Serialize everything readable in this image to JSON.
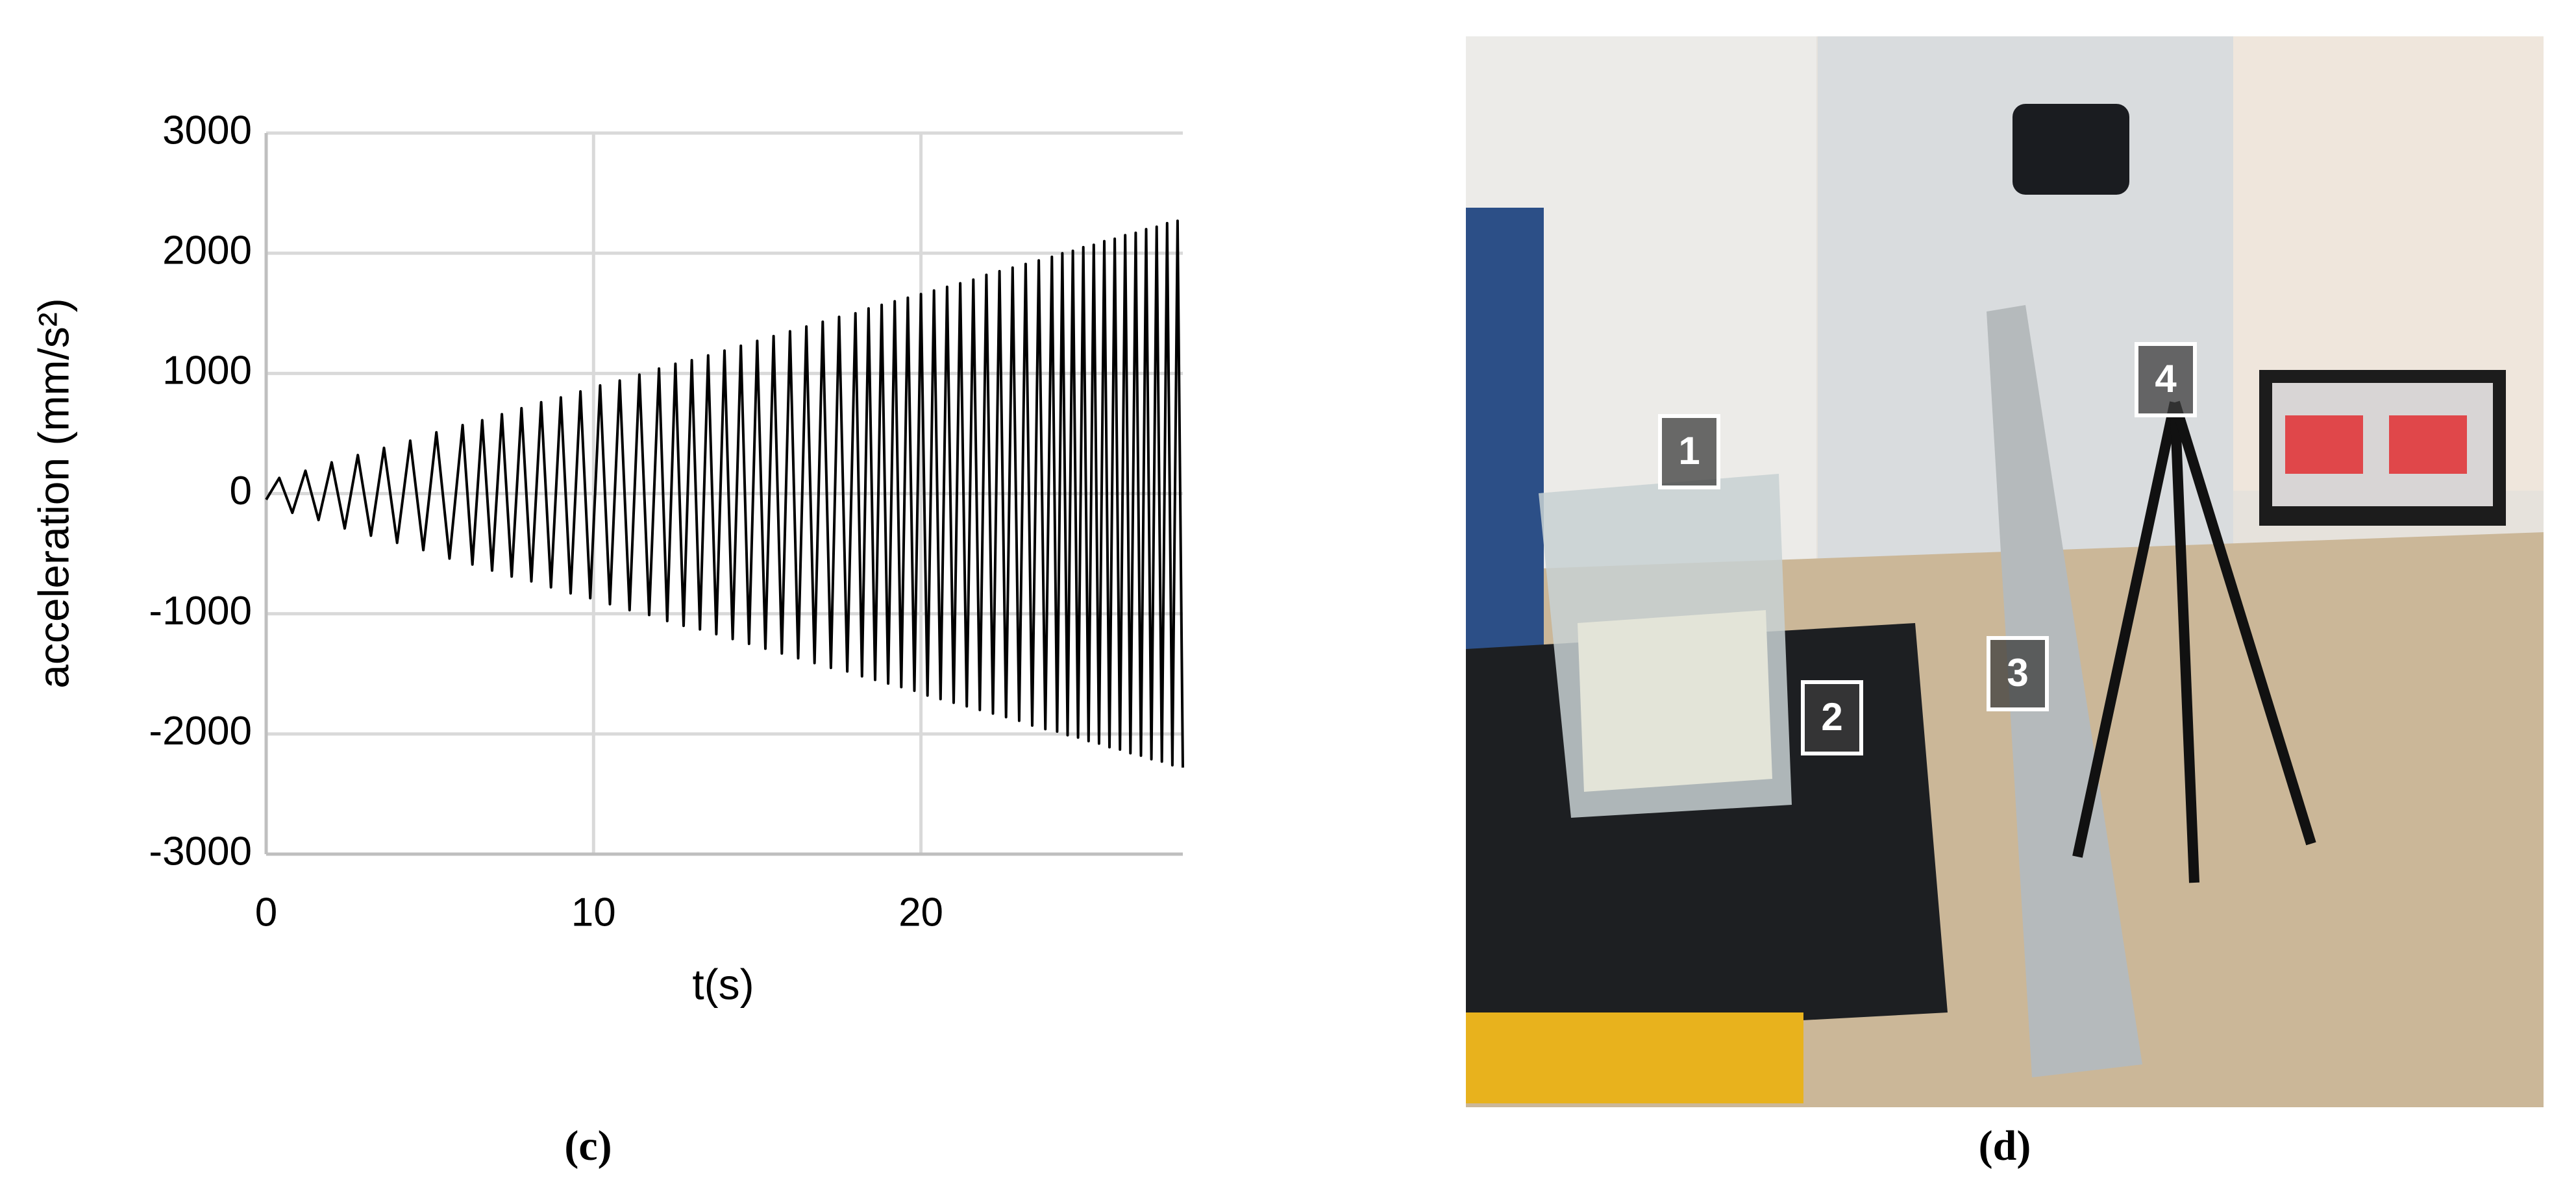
{
  "chart_data": {
    "type": "line",
    "xlabel": "t(s)",
    "ylabel": "acceleration (mm/s²)",
    "caption": "(c)",
    "xlim": [
      0,
      28
    ],
    "xticks": [
      0,
      10,
      20
    ],
    "ylim": [
      -3000,
      3000
    ],
    "yticks": [
      -3000,
      -2000,
      -1000,
      0,
      1000,
      2000,
      3000
    ],
    "grid": true,
    "series": [
      {
        "color": "#000000",
        "x": [
          0,
          0.4,
          0.8,
          1.2,
          1.6,
          2.0,
          2.4,
          2.8,
          3.2,
          3.6,
          4.0,
          4.4,
          4.8,
          5.2,
          5.6,
          6.0,
          6.3,
          6.6,
          6.9,
          7.2,
          7.5,
          7.8,
          8.1,
          8.4,
          8.7,
          9.0,
          9.3,
          9.6,
          9.9,
          10.2,
          10.5,
          10.8,
          11.1,
          11.4,
          11.7,
          12.0,
          12.25,
          12.5,
          12.75,
          13.0,
          13.25,
          13.5,
          13.75,
          14.0,
          14.25,
          14.5,
          14.75,
          15.0,
          15.25,
          15.5,
          15.75,
          16.0,
          16.25,
          16.5,
          16.75,
          17.0,
          17.25,
          17.5,
          17.75,
          18.0,
          18.2,
          18.4,
          18.6,
          18.8,
          19.0,
          19.2,
          19.4,
          19.6,
          19.8,
          20.0,
          20.2,
          20.4,
          20.6,
          20.8,
          21.0,
          21.2,
          21.4,
          21.6,
          21.8,
          22.0,
          22.2,
          22.4,
          22.6,
          22.8,
          23.0,
          23.2,
          23.4,
          23.6,
          23.8,
          24.0,
          24.16,
          24.32,
          24.48,
          24.64,
          24.8,
          24.96,
          25.12,
          25.28,
          25.44,
          25.6,
          25.76,
          25.92,
          26.08,
          26.24,
          26.4,
          26.56,
          26.72,
          26.88,
          27.04,
          27.2,
          27.36,
          27.52,
          27.68,
          27.84,
          28.0
        ],
        "values": [
          -50,
          130,
          -160,
          190,
          -220,
          260,
          -290,
          320,
          -350,
          380,
          -410,
          440,
          -470,
          510,
          -540,
          570,
          -590,
          610,
          -640,
          660,
          -690,
          710,
          -730,
          760,
          -780,
          800,
          -830,
          850,
          -870,
          900,
          -920,
          940,
          -970,
          990,
          -1010,
          1040,
          -1060,
          1080,
          -1100,
          1110,
          -1130,
          1150,
          -1170,
          1190,
          -1210,
          1230,
          -1250,
          1270,
          -1290,
          1310,
          -1330,
          1350,
          -1370,
          1390,
          -1410,
          1430,
          -1450,
          1470,
          -1480,
          1500,
          -1520,
          1540,
          -1550,
          1570,
          -1580,
          1600,
          -1610,
          1630,
          -1640,
          1660,
          -1680,
          1690,
          -1710,
          1720,
          -1740,
          1750,
          -1770,
          1780,
          -1800,
          1820,
          -1830,
          1850,
          -1860,
          1880,
          -1890,
          1910,
          -1930,
          1940,
          -1960,
          1970,
          -1980,
          2000,
          -2010,
          2020,
          -2030,
          2050,
          -2060,
          2070,
          -2080,
          2100,
          -2110,
          2120,
          -2130,
          2150,
          -2160,
          2170,
          -2180,
          2200,
          -2210,
          2220,
          -2230,
          2250,
          -2260,
          2270,
          -2280
        ]
      }
    ]
  },
  "photo": {
    "caption": "(d)",
    "labels": [
      "1",
      "2",
      "3",
      "4"
    ]
  }
}
